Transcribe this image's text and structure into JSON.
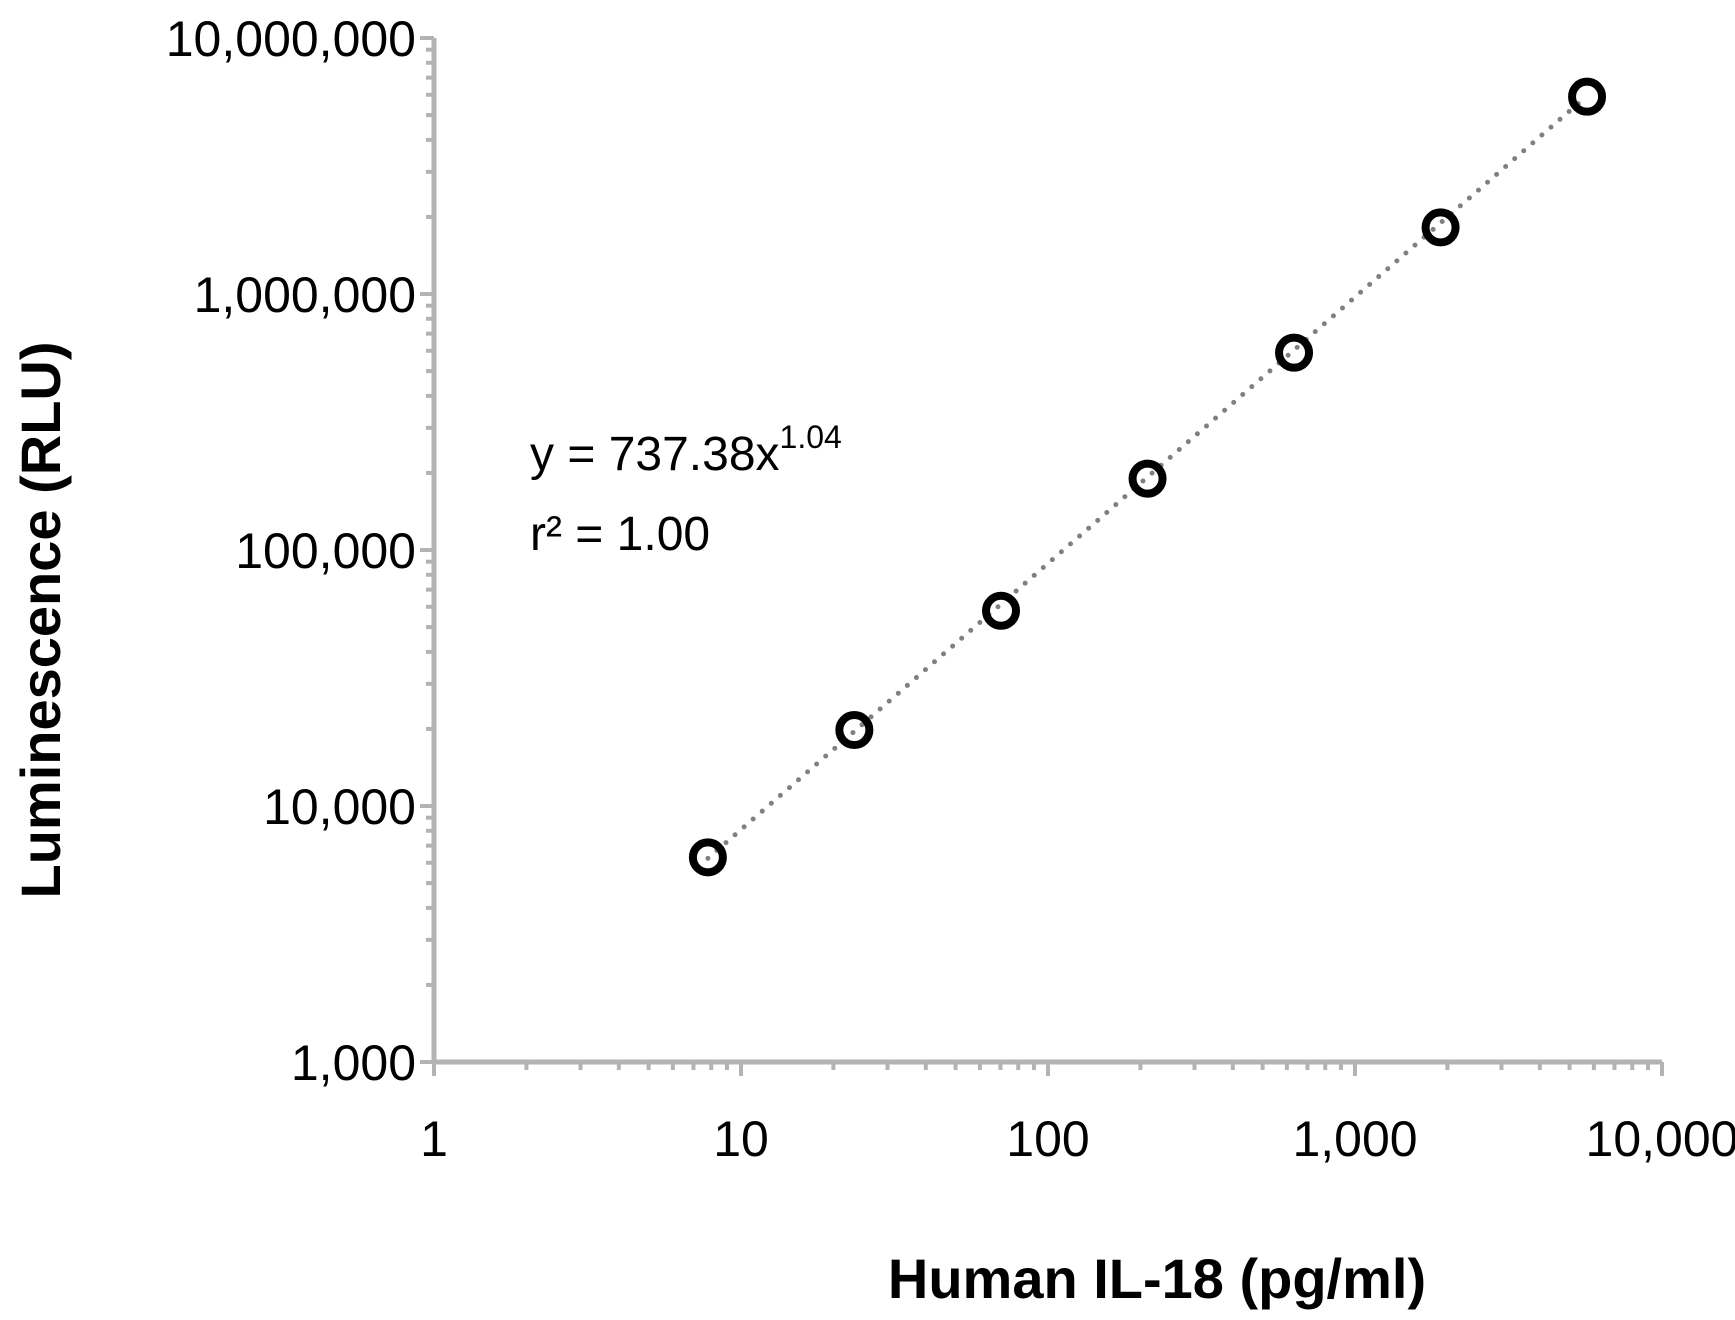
{
  "chart_data": {
    "type": "scatter",
    "title": "",
    "xlabel": "Human IL-18 (pg/ml)",
    "ylabel": "Luminescence (RLU)",
    "x_scale": "log",
    "y_scale": "log",
    "xlim": [
      1,
      10000
    ],
    "ylim": [
      1000,
      10000000
    ],
    "x_ticks": [
      1,
      10,
      100,
      1000,
      10000
    ],
    "x_tick_labels": [
      "1",
      "10",
      "100",
      "1,000",
      "10,000"
    ],
    "y_ticks": [
      1000,
      10000,
      100000,
      1000000,
      10000000
    ],
    "y_tick_labels": [
      "1,000",
      "10,000",
      "100,000",
      "1,000,000",
      "10,000,000"
    ],
    "grid": false,
    "points": {
      "x": [
        7.8,
        23.4,
        70.3,
        211,
        633,
        1900,
        5700
      ],
      "y": [
        6300,
        19800,
        57900,
        190000,
        590000,
        1820000,
        5900000
      ]
    },
    "trendline": {
      "type": "power",
      "coefficient": 737.38,
      "exponent": 1.04,
      "style": "dotted"
    },
    "annotations": {
      "equation_prefix": "y = 737.38x",
      "equation_exponent": "1.04",
      "r_squared": "r² = 1.00"
    },
    "colors": {
      "axis": "#b3b3b3",
      "markers": "#000000",
      "trendline": "#808080"
    }
  }
}
